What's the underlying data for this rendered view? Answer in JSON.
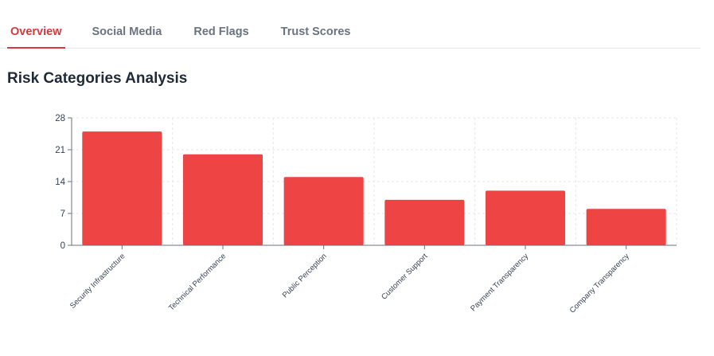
{
  "tabs": [
    {
      "label": "Overview",
      "active": true
    },
    {
      "label": "Social Media",
      "active": false
    },
    {
      "label": "Red Flags",
      "active": false
    },
    {
      "label": "Trust Scores",
      "active": false
    }
  ],
  "section": {
    "title": "Risk Categories Analysis"
  },
  "colors": {
    "accent": "#d63a3a",
    "bar": "#ef4444"
  },
  "chart_data": {
    "type": "bar",
    "categories": [
      "Security Infrastructure",
      "Technical Performance",
      "Public Perception",
      "Customer Support",
      "Payment Transparency",
      "Company Transparency"
    ],
    "values": [
      25,
      20,
      15,
      10,
      12,
      8
    ],
    "yticks": [
      0,
      7,
      14,
      21,
      28
    ],
    "ylim": [
      0,
      28
    ],
    "grid": true,
    "legend": "none"
  }
}
